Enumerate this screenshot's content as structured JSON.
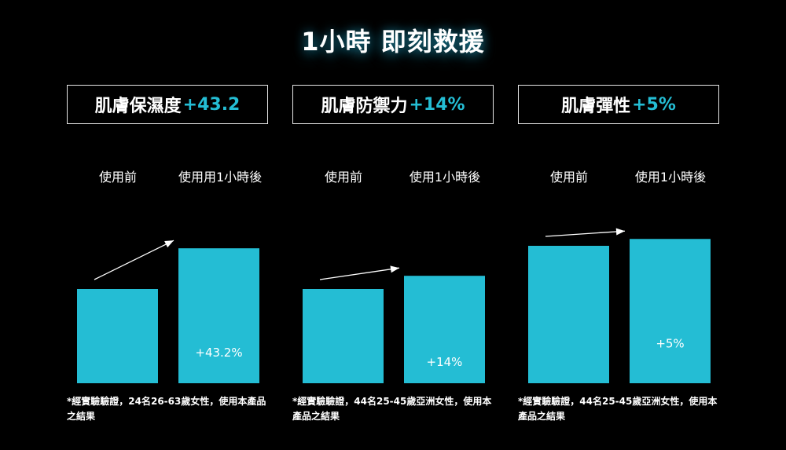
{
  "title": "1小時 即刻救援",
  "colors": {
    "bar": "#24bdd4",
    "accent": "#24bdd4",
    "background": "#000000"
  },
  "chart_data": [
    {
      "type": "bar",
      "heading_label": "肌膚保濕度",
      "heading_value": "+43.2",
      "categories": [
        "使用前",
        "使用用1小時後"
      ],
      "values": [
        100,
        143.2
      ],
      "bar_labels": [
        "",
        "+43.2%"
      ],
      "footnote": "*經實驗驗證，24名26-63歲女性，使用本產品之結果"
    },
    {
      "type": "bar",
      "heading_label": "肌膚防禦力",
      "heading_value": "+14%",
      "categories": [
        "使用前",
        "使用1小時後"
      ],
      "values": [
        100,
        114
      ],
      "bar_labels": [
        "",
        "+14%"
      ],
      "footnote": "*經實驗驗證，44名25-45歲亞洲女性，使用本產品之結果"
    },
    {
      "type": "bar",
      "heading_label": "肌膚彈性",
      "heading_value": "+5%",
      "categories": [
        "使用前",
        "使用1小時後"
      ],
      "values": [
        100,
        105
      ],
      "bar_labels": [
        "",
        "+5%"
      ],
      "footnote": "*經實驗驗證，44名25-45歲亞洲女性，使用本產品之結果"
    }
  ]
}
